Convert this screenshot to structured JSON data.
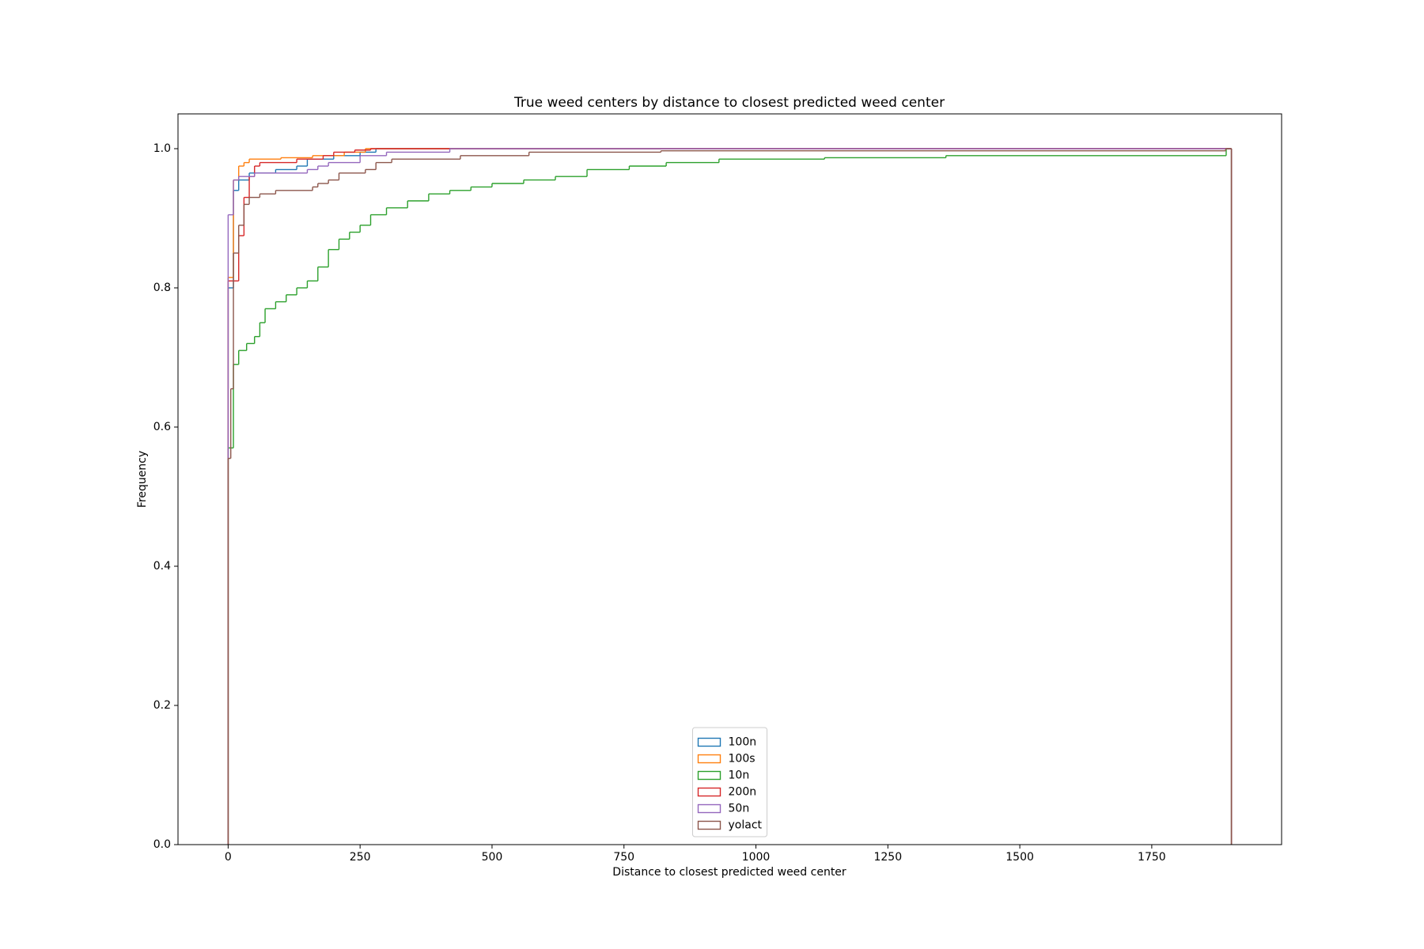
{
  "chart_data": {
    "type": "step-histogram",
    "title": "True weed centers by distance to closest predicted weed center",
    "xlabel": "Distance to closest predicted weed center",
    "ylabel": "Frequency",
    "xlim": [
      -95,
      1996
    ],
    "ylim": [
      0,
      1.05
    ],
    "xticks": [
      0,
      250,
      500,
      750,
      1000,
      1250,
      1500,
      1750
    ],
    "yticks": [
      {
        "value": 0,
        "label": "0.0"
      },
      0.2,
      0.4,
      0.6,
      0.8,
      {
        "value": 1,
        "label": "1.0"
      }
    ],
    "legend": "lower center",
    "series": [
      {
        "name": "100n",
        "color": "#1f77b4",
        "bins": [
          0,
          10,
          20,
          40,
          90,
          130,
          150,
          200,
          250,
          280,
          1901
        ],
        "values": [
          0.8,
          0.94,
          0.955,
          0.965,
          0.97,
          0.975,
          0.985,
          0.99,
          0.995,
          1.0
        ]
      },
      {
        "name": "100s",
        "color": "#ff7f0e",
        "bins": [
          0,
          10,
          20,
          30,
          40,
          100,
          160,
          220,
          260,
          1901
        ],
        "values": [
          0.815,
          0.955,
          0.975,
          0.98,
          0.985,
          0.987,
          0.99,
          0.995,
          1.0
        ]
      },
      {
        "name": "10n",
        "color": "#2ca02c",
        "bins": [
          0,
          10,
          20,
          35,
          50,
          60,
          70,
          90,
          110,
          130,
          150,
          170,
          190,
          210,
          230,
          250,
          270,
          300,
          340,
          380,
          420,
          460,
          500,
          560,
          620,
          680,
          760,
          830,
          930,
          1130,
          1360,
          1891,
          1901
        ],
        "values": [
          0.57,
          0.69,
          0.71,
          0.72,
          0.73,
          0.75,
          0.77,
          0.78,
          0.79,
          0.8,
          0.81,
          0.83,
          0.855,
          0.87,
          0.88,
          0.89,
          0.905,
          0.915,
          0.925,
          0.935,
          0.94,
          0.945,
          0.95,
          0.955,
          0.96,
          0.97,
          0.975,
          0.98,
          0.985,
          0.987,
          0.99,
          1.0
        ]
      },
      {
        "name": "200n",
        "color": "#d62728",
        "bins": [
          0,
          20,
          30,
          40,
          50,
          60,
          130,
          180,
          200,
          240,
          270,
          1901
        ],
        "values": [
          0.81,
          0.875,
          0.93,
          0.96,
          0.975,
          0.98,
          0.985,
          0.99,
          0.995,
          0.998,
          1.0
        ]
      },
      {
        "name": "50n",
        "color": "#9467bd",
        "bins": [
          0,
          10,
          20,
          50,
          150,
          170,
          190,
          250,
          300,
          420,
          1901
        ],
        "values": [
          0.905,
          0.955,
          0.96,
          0.965,
          0.97,
          0.975,
          0.98,
          0.99,
          0.995,
          1.0
        ]
      },
      {
        "name": "yolact",
        "color": "#8c564b",
        "bins": [
          0,
          5,
          10,
          20,
          30,
          40,
          60,
          90,
          160,
          170,
          190,
          210,
          260,
          280,
          310,
          440,
          570,
          820,
          1890,
          1901
        ],
        "values": [
          0.555,
          0.655,
          0.85,
          0.89,
          0.92,
          0.93,
          0.935,
          0.94,
          0.945,
          0.95,
          0.955,
          0.965,
          0.97,
          0.98,
          0.985,
          0.99,
          0.995,
          0.997,
          1.0
        ]
      }
    ]
  }
}
